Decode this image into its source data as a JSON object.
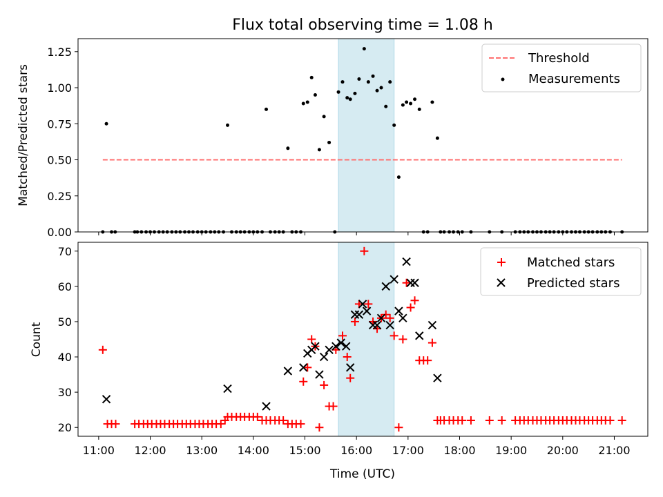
{
  "title": "Flux total observing time = 1.08 h",
  "colors": {
    "threshold": "#ff6f6f",
    "matched": "#ff0000",
    "predicted": "#000000",
    "measurement": "#000000",
    "span": "#add8e6"
  },
  "chart_data": [
    {
      "type": "scatter",
      "ylabel": "Matched/Predicted stars",
      "xlabel": "",
      "xlim": [
        10.6,
        21.65
      ],
      "ylim": [
        0,
        1.34
      ],
      "yticks": [
        0,
        0.25,
        0.5,
        0.75,
        1.0,
        1.25
      ],
      "ytick_labels": [
        "0.00",
        "0.25",
        "0.50",
        "0.75",
        "1.00",
        "1.25"
      ],
      "highlight_span": [
        15.65,
        16.73
      ],
      "legend": {
        "placement": "top-right",
        "entries": [
          "Threshold",
          "Measurements"
        ]
      },
      "threshold": {
        "name": "Threshold",
        "y": 0.5,
        "x_range": [
          11.08,
          21.15
        ]
      },
      "measurements": {
        "name": "Measurements",
        "points": [
          [
            11.08,
            0
          ],
          [
            11.15,
            0.75
          ],
          [
            11.25,
            0
          ],
          [
            11.32,
            0
          ],
          [
            11.7,
            0
          ],
          [
            11.75,
            0
          ],
          [
            11.83,
            0
          ],
          [
            11.92,
            0
          ],
          [
            12.0,
            0
          ],
          [
            12.08,
            0
          ],
          [
            12.17,
            0
          ],
          [
            12.25,
            0
          ],
          [
            12.33,
            0
          ],
          [
            12.42,
            0
          ],
          [
            12.5,
            0
          ],
          [
            12.58,
            0
          ],
          [
            12.67,
            0
          ],
          [
            12.75,
            0
          ],
          [
            12.83,
            0
          ],
          [
            12.92,
            0
          ],
          [
            13.0,
            0
          ],
          [
            13.08,
            0
          ],
          [
            13.17,
            0
          ],
          [
            13.25,
            0
          ],
          [
            13.33,
            0
          ],
          [
            13.42,
            0
          ],
          [
            13.5,
            0.74
          ],
          [
            13.58,
            0
          ],
          [
            13.67,
            0
          ],
          [
            13.75,
            0
          ],
          [
            13.83,
            0
          ],
          [
            13.92,
            0
          ],
          [
            14.0,
            0
          ],
          [
            14.08,
            0
          ],
          [
            14.17,
            0
          ],
          [
            14.25,
            0.85
          ],
          [
            14.33,
            0
          ],
          [
            14.42,
            0
          ],
          [
            14.5,
            0
          ],
          [
            14.58,
            0
          ],
          [
            14.67,
            0.58
          ],
          [
            14.75,
            0
          ],
          [
            14.83,
            0
          ],
          [
            14.92,
            0
          ],
          [
            14.97,
            0.89
          ],
          [
            15.05,
            0.9
          ],
          [
            15.13,
            1.07
          ],
          [
            15.2,
            0.95
          ],
          [
            15.28,
            0.57
          ],
          [
            15.37,
            0.8
          ],
          [
            15.47,
            0.62
          ],
          [
            15.58,
            0
          ],
          [
            15.65,
            0.97
          ],
          [
            15.73,
            1.04
          ],
          [
            15.82,
            0.93
          ],
          [
            15.88,
            0.92
          ],
          [
            15.97,
            0.96
          ],
          [
            16.05,
            1.06
          ],
          [
            16.15,
            1.27
          ],
          [
            16.23,
            1.04
          ],
          [
            16.32,
            1.08
          ],
          [
            16.4,
            0.98
          ],
          [
            16.48,
            1.0
          ],
          [
            16.57,
            0.87
          ],
          [
            16.65,
            1.04
          ],
          [
            16.73,
            0.74
          ],
          [
            16.82,
            0.38
          ],
          [
            16.9,
            0.88
          ],
          [
            16.97,
            0.9
          ],
          [
            17.05,
            0.89
          ],
          [
            17.13,
            0.92
          ],
          [
            17.22,
            0.85
          ],
          [
            17.3,
            0
          ],
          [
            17.38,
            0
          ],
          [
            17.47,
            0.9
          ],
          [
            17.57,
            0.65
          ],
          [
            17.63,
            0
          ],
          [
            17.7,
            0
          ],
          [
            17.8,
            0
          ],
          [
            17.88,
            0
          ],
          [
            17.97,
            0
          ],
          [
            18.05,
            0
          ],
          [
            18.22,
            0
          ],
          [
            18.58,
            0
          ],
          [
            18.82,
            0
          ],
          [
            19.08,
            0
          ],
          [
            19.17,
            0
          ],
          [
            19.25,
            0
          ],
          [
            19.33,
            0
          ],
          [
            19.42,
            0
          ],
          [
            19.5,
            0
          ],
          [
            19.58,
            0
          ],
          [
            19.67,
            0
          ],
          [
            19.75,
            0
          ],
          [
            19.83,
            0
          ],
          [
            19.92,
            0
          ],
          [
            20.0,
            0
          ],
          [
            20.08,
            0
          ],
          [
            20.17,
            0
          ],
          [
            20.25,
            0
          ],
          [
            20.33,
            0
          ],
          [
            20.42,
            0
          ],
          [
            20.5,
            0
          ],
          [
            20.58,
            0
          ],
          [
            20.67,
            0
          ],
          [
            20.75,
            0
          ],
          [
            20.83,
            0
          ],
          [
            20.92,
            0
          ],
          [
            21.15,
            0
          ]
        ]
      }
    },
    {
      "type": "scatter",
      "ylabel": "Count",
      "xlabel": "Time (UTC)",
      "xlim": [
        10.6,
        21.65
      ],
      "ylim": [
        17.5,
        72.5
      ],
      "yticks": [
        20,
        30,
        40,
        50,
        60,
        70
      ],
      "ytick_labels": [
        "20",
        "30",
        "40",
        "50",
        "60",
        "70"
      ],
      "xticks": [
        11,
        12,
        13,
        14,
        15,
        16,
        17,
        18,
        19,
        20,
        21
      ],
      "xtick_labels": [
        "11:00",
        "12:00",
        "13:00",
        "14:00",
        "15:00",
        "16:00",
        "17:00",
        "18:00",
        "19:00",
        "20:00",
        "21:00"
      ],
      "highlight_span": [
        15.65,
        16.73
      ],
      "legend": {
        "placement": "top-right",
        "entries": [
          "Matched stars",
          "Predicted stars"
        ]
      },
      "series": [
        {
          "name": "Matched stars",
          "marker": "plus",
          "points": [
            [
              11.08,
              42
            ],
            [
              11.17,
              21
            ],
            [
              11.25,
              21
            ],
            [
              11.33,
              21
            ],
            [
              11.7,
              21
            ],
            [
              11.78,
              21
            ],
            [
              11.87,
              21
            ],
            [
              11.95,
              21
            ],
            [
              12.03,
              21
            ],
            [
              12.12,
              21
            ],
            [
              12.2,
              21
            ],
            [
              12.28,
              21
            ],
            [
              12.37,
              21
            ],
            [
              12.45,
              21
            ],
            [
              12.53,
              21
            ],
            [
              12.62,
              21
            ],
            [
              12.7,
              21
            ],
            [
              12.78,
              21
            ],
            [
              12.87,
              21
            ],
            [
              12.95,
              21
            ],
            [
              13.03,
              21
            ],
            [
              13.12,
              21
            ],
            [
              13.2,
              21
            ],
            [
              13.28,
              21
            ],
            [
              13.37,
              21
            ],
            [
              13.45,
              22
            ],
            [
              13.5,
              23
            ],
            [
              13.58,
              23
            ],
            [
              13.67,
              23
            ],
            [
              13.75,
              23
            ],
            [
              13.83,
              23
            ],
            [
              13.92,
              23
            ],
            [
              14.0,
              23
            ],
            [
              14.08,
              23
            ],
            [
              14.17,
              22
            ],
            [
              14.25,
              22
            ],
            [
              14.33,
              22
            ],
            [
              14.42,
              22
            ],
            [
              14.5,
              22
            ],
            [
              14.58,
              22
            ],
            [
              14.67,
              21
            ],
            [
              14.75,
              21
            ],
            [
              14.83,
              21
            ],
            [
              14.92,
              21
            ],
            [
              14.97,
              33
            ],
            [
              15.05,
              37
            ],
            [
              15.13,
              45
            ],
            [
              15.2,
              43
            ],
            [
              15.28,
              20
            ],
            [
              15.37,
              32
            ],
            [
              15.47,
              26
            ],
            [
              15.55,
              26
            ],
            [
              15.6,
              42
            ],
            [
              15.73,
              46
            ],
            [
              15.82,
              40
            ],
            [
              15.88,
              34
            ],
            [
              15.97,
              50
            ],
            [
              16.05,
              55
            ],
            [
              16.15,
              70
            ],
            [
              16.23,
              55
            ],
            [
              16.32,
              50
            ],
            [
              16.4,
              48
            ],
            [
              16.48,
              51
            ],
            [
              16.57,
              52
            ],
            [
              16.65,
              51
            ],
            [
              16.73,
              46
            ],
            [
              16.82,
              20
            ],
            [
              16.9,
              45
            ],
            [
              16.97,
              61
            ],
            [
              17.05,
              54
            ],
            [
              17.13,
              56
            ],
            [
              17.22,
              39
            ],
            [
              17.3,
              39
            ],
            [
              17.38,
              39
            ],
            [
              17.47,
              44
            ],
            [
              17.57,
              22
            ],
            [
              17.63,
              22
            ],
            [
              17.7,
              22
            ],
            [
              17.8,
              22
            ],
            [
              17.88,
              22
            ],
            [
              17.97,
              22
            ],
            [
              18.05,
              22
            ],
            [
              18.22,
              22
            ],
            [
              18.58,
              22
            ],
            [
              18.82,
              22
            ],
            [
              19.08,
              22
            ],
            [
              19.17,
              22
            ],
            [
              19.25,
              22
            ],
            [
              19.33,
              22
            ],
            [
              19.42,
              22
            ],
            [
              19.5,
              22
            ],
            [
              19.58,
              22
            ],
            [
              19.67,
              22
            ],
            [
              19.75,
              22
            ],
            [
              19.83,
              22
            ],
            [
              19.92,
              22
            ],
            [
              20.0,
              22
            ],
            [
              20.08,
              22
            ],
            [
              20.17,
              22
            ],
            [
              20.25,
              22
            ],
            [
              20.33,
              22
            ],
            [
              20.42,
              22
            ],
            [
              20.5,
              22
            ],
            [
              20.58,
              22
            ],
            [
              20.67,
              22
            ],
            [
              20.75,
              22
            ],
            [
              20.83,
              22
            ],
            [
              20.92,
              22
            ],
            [
              21.15,
              22
            ]
          ]
        },
        {
          "name": "Predicted stars",
          "marker": "x",
          "points": [
            [
              11.15,
              28
            ],
            [
              13.5,
              31
            ],
            [
              14.25,
              26
            ],
            [
              14.67,
              36
            ],
            [
              14.97,
              37
            ],
            [
              15.05,
              41
            ],
            [
              15.13,
              42
            ],
            [
              15.2,
              43
            ],
            [
              15.28,
              35
            ],
            [
              15.37,
              40
            ],
            [
              15.47,
              42
            ],
            [
              15.6,
              43
            ],
            [
              15.7,
              44
            ],
            [
              15.8,
              43
            ],
            [
              15.88,
              37
            ],
            [
              15.97,
              52
            ],
            [
              16.05,
              52
            ],
            [
              16.12,
              55
            ],
            [
              16.2,
              53
            ],
            [
              16.32,
              49
            ],
            [
              16.4,
              49
            ],
            [
              16.48,
              51
            ],
            [
              16.57,
              60
            ],
            [
              16.65,
              49
            ],
            [
              16.73,
              62
            ],
            [
              16.82,
              53
            ],
            [
              16.9,
              51
            ],
            [
              16.97,
              67
            ],
            [
              17.05,
              61
            ],
            [
              17.13,
              61
            ],
            [
              17.22,
              46
            ],
            [
              17.47,
              49
            ],
            [
              17.57,
              34
            ]
          ]
        }
      ]
    }
  ]
}
